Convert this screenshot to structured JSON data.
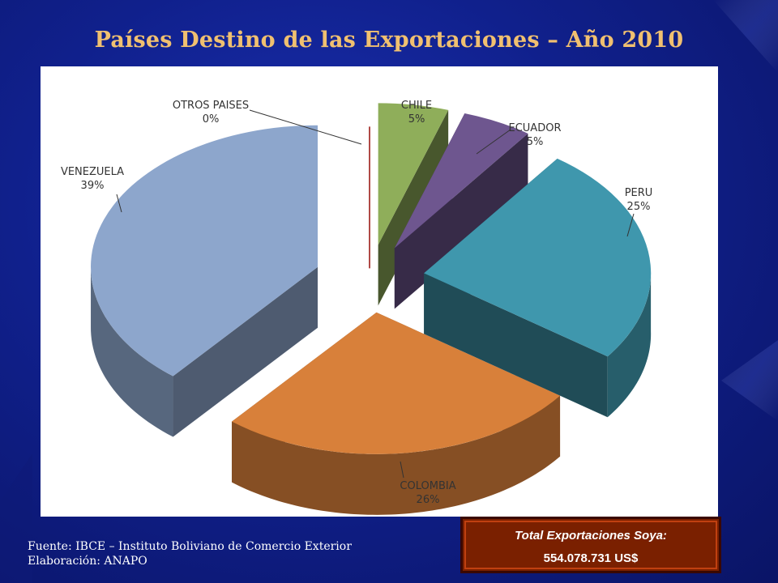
{
  "slide": {
    "title": "Países Destino de las Exportaciones – Año 2010"
  },
  "chart_data": {
    "type": "pie",
    "style": "3d-exploded",
    "title": "",
    "slices": [
      {
        "label": "CHILE",
        "value": 5,
        "display": "5%",
        "color": "#8fae5a"
      },
      {
        "label": "ECUADOR",
        "value": 5,
        "display": "5%",
        "color": "#6e568f"
      },
      {
        "label": "PERU",
        "value": 25,
        "display": "25%",
        "color": "#3f97ad"
      },
      {
        "label": "COLOMBIA",
        "value": 26,
        "display": "26%",
        "color": "#d8803a"
      },
      {
        "label": "VENEZUELA",
        "value": 39,
        "display": "39%",
        "color": "#8da6cc"
      },
      {
        "label": "OTROS PAISES",
        "value": 0,
        "display": "0%",
        "color": "#b04a46"
      }
    ]
  },
  "footer": {
    "source": "Fuente: IBCE – Instituto Boliviano de Comercio Exterior",
    "author": "Elaboración: ANAPO"
  },
  "total_box": {
    "label": "Total Exportaciones Soya:",
    "value": "554.078.731 US$"
  }
}
